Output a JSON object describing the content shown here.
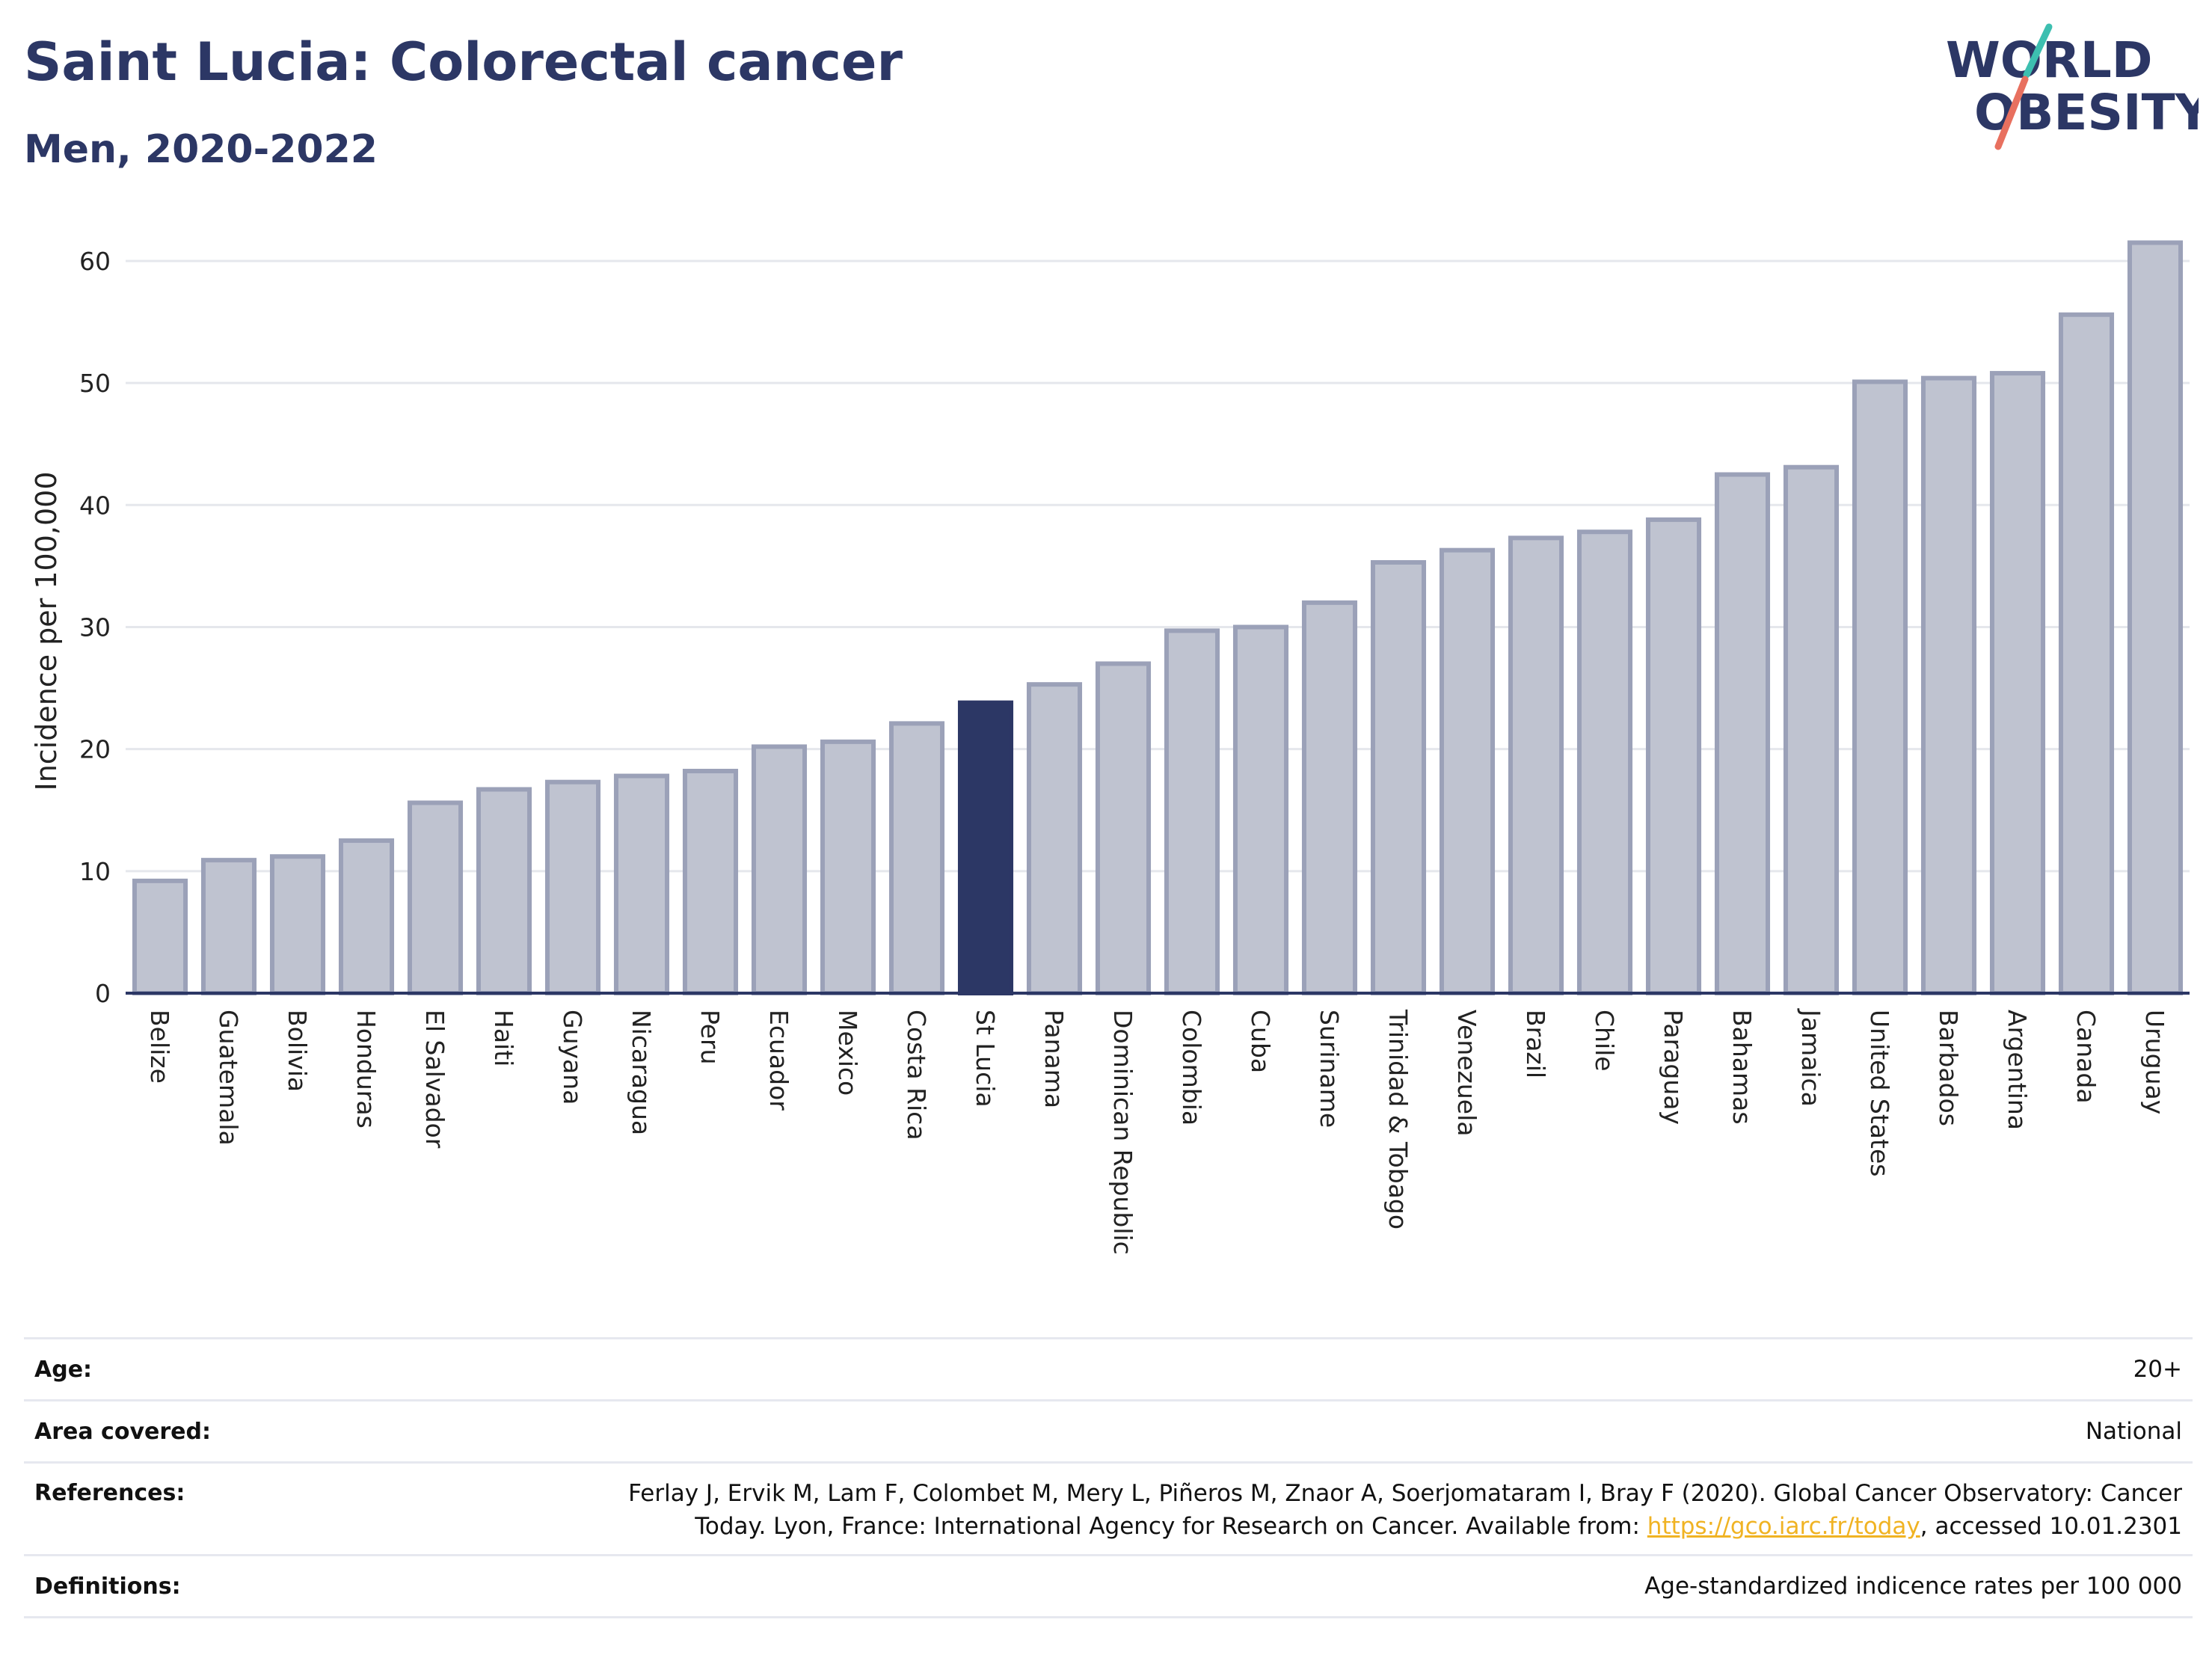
{
  "header": {
    "title": "Saint Lucia: Colorectal cancer",
    "subtitle": "Men, 2020-2022"
  },
  "logo": {
    "line1": "WORLD",
    "line2": "OBESITY",
    "colors": {
      "text": "#2c3765",
      "slash_top": "#3dbfb0",
      "slash_bottom": "#e8705f"
    }
  },
  "chart_data": {
    "type": "bar",
    "ylabel": "Incidence per 100,000",
    "ylim": [
      0,
      63
    ],
    "yticks": [
      0,
      10,
      20,
      30,
      40,
      50,
      60
    ],
    "grid": true,
    "highlight": "St Lucia",
    "colors": {
      "bar": "#bfc3d0",
      "bar_border": "#9ba1b8",
      "highlight": "#2c3765",
      "grid": "#e5e7ec"
    },
    "categories": [
      "Belize",
      "Guatemala",
      "Bolivia",
      "Honduras",
      "El Salvador",
      "Haiti",
      "Guyana",
      "Nicaragua",
      "Peru",
      "Ecuador",
      "Mexico",
      "Costa Rica",
      "St Lucia",
      "Panama",
      "Dominican Republic",
      "Colombia",
      "Cuba",
      "Suriname",
      "Trinidad & Tobago",
      "Venezuela",
      "Brazil",
      "Chile",
      "Paraguay",
      "Bahamas",
      "Jamaica",
      "United States",
      "Barbados",
      "Argentina",
      "Canada",
      "Uruguay"
    ],
    "values": [
      9.2,
      10.9,
      11.2,
      12.5,
      15.6,
      16.7,
      17.3,
      17.8,
      18.2,
      20.2,
      20.6,
      22.1,
      23.8,
      25.3,
      27.0,
      29.7,
      30.0,
      32.0,
      35.3,
      36.3,
      37.3,
      37.8,
      38.8,
      42.5,
      43.1,
      50.1,
      50.4,
      50.8,
      55.6,
      61.5
    ]
  },
  "info": {
    "age_label": "Age:",
    "age_value": "20+",
    "area_label": "Area covered:",
    "area_value": "National",
    "references_label": "References:",
    "references_line1": "Ferlay J, Ervik M, Lam F, Colombet M, Mery L, Piñeros M, Znaor A, Soerjomataram I, Bray F (2020). Global Cancer Observatory: Cancer",
    "references_line2_pre": "Today. Lyon, France: International Agency for Research on Cancer. Available from: ",
    "references_link": "https://gco.iarc.fr/today",
    "references_line2_post": ", accessed 10.01.2301",
    "definitions_label": "Definitions:",
    "definitions_value": "Age-standardized indicence rates per 100 000"
  }
}
